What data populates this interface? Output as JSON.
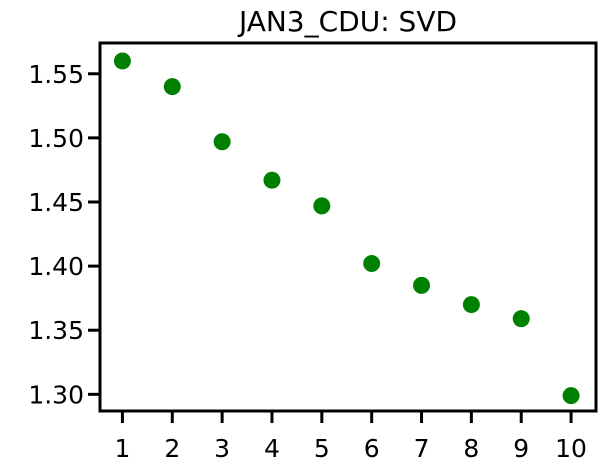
{
  "chart_data": {
    "type": "scatter",
    "title": "JAN3_CDU: SVD",
    "xlabel": "",
    "ylabel": "",
    "x": [
      1,
      2,
      3,
      4,
      5,
      6,
      7,
      8,
      9,
      10
    ],
    "y": [
      1.56,
      1.54,
      1.497,
      1.467,
      1.447,
      1.402,
      1.385,
      1.37,
      1.359,
      1.299
    ],
    "xticks": [
      "1",
      "2",
      "3",
      "4",
      "5",
      "6",
      "7",
      "8",
      "9",
      "10"
    ],
    "yticks": [
      "1.30",
      "1.35",
      "1.40",
      "1.45",
      "1.50",
      "1.55"
    ],
    "xlim": [
      0.55,
      10.5
    ],
    "ylim": [
      1.287,
      1.574
    ],
    "grid": false,
    "marker_color": "#008000"
  }
}
